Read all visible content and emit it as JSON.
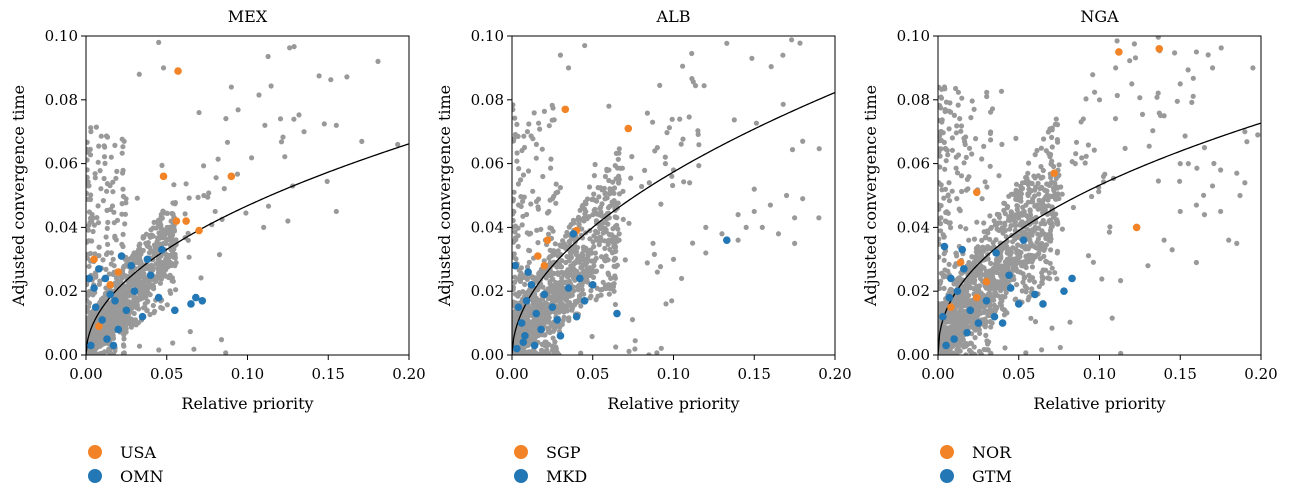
{
  "colors": {
    "background_points": "#999999",
    "highlight_a": "#F28427",
    "highlight_b": "#2277B4",
    "fit_line": "#000000"
  },
  "chart_data": [
    {
      "type": "scatter",
      "title": "MEX",
      "xlabel": "Relative priority",
      "ylabel": "Adjusted convergence time",
      "xlim": [
        0,
        0.2
      ],
      "ylim": [
        0,
        0.1
      ],
      "xticks": [
        "0.00",
        "0.05",
        "0.10",
        "0.15",
        "0.20"
      ],
      "yticks": [
        "0.00",
        "0.02",
        "0.04",
        "0.06",
        "0.08",
        "0.10"
      ],
      "fit_curve": {
        "form": "power",
        "a": 0.148,
        "b": 0.5
      },
      "cloud": {
        "n": 1400,
        "seed": 11,
        "spread": 1.0,
        "tail": 0.1
      },
      "extra_points": [
        [
          0.193,
          0.066
        ],
        [
          0.155,
          0.045
        ],
        [
          0.128,
          0.053
        ],
        [
          0.125,
          0.042
        ],
        [
          0.135,
          0.07
        ],
        [
          0.11,
          0.04
        ],
        [
          0.155,
          0.072
        ],
        [
          0.09,
          0.084
        ],
        [
          0.07,
          0.076
        ],
        [
          0.045,
          0.098
        ],
        [
          0.033,
          0.088
        ],
        [
          0.048,
          0.09
        ],
        [
          0.073,
          0.05
        ],
        [
          0.08,
          0.045
        ]
      ],
      "series": [
        {
          "name": "USA",
          "points": [
            [
              0.057,
              0.089
            ],
            [
              0.048,
              0.056
            ],
            [
              0.09,
              0.056
            ],
            [
              0.062,
              0.042
            ],
            [
              0.056,
              0.042
            ],
            [
              0.07,
              0.039
            ],
            [
              0.008,
              0.009
            ],
            [
              0.005,
              0.03
            ],
            [
              0.02,
              0.026
            ],
            [
              0.015,
              0.022
            ]
          ]
        },
        {
          "name": "OMN",
          "points": [
            [
              0.003,
              0.003
            ],
            [
              0.005,
              0.021
            ],
            [
              0.008,
              0.027
            ],
            [
              0.012,
              0.024
            ],
            [
              0.015,
              0.019
            ],
            [
              0.018,
              0.017
            ],
            [
              0.022,
              0.031
            ],
            [
              0.025,
              0.014
            ],
            [
              0.03,
              0.02
            ],
            [
              0.035,
              0.012
            ],
            [
              0.04,
              0.025
            ],
            [
              0.045,
              0.018
            ],
            [
              0.047,
              0.033
            ],
            [
              0.055,
              0.014
            ],
            [
              0.065,
              0.016
            ],
            [
              0.068,
              0.018
            ],
            [
              0.072,
              0.017
            ],
            [
              0.01,
              0.011
            ],
            [
              0.02,
              0.008
            ],
            [
              0.028,
              0.028
            ],
            [
              0.006,
              0.015
            ],
            [
              0.013,
              0.005
            ],
            [
              0.038,
              0.03
            ],
            [
              0.002,
              0.024
            ],
            [
              0.017,
              0.003
            ]
          ]
        }
      ],
      "legend": "bottom-left"
    },
    {
      "type": "scatter",
      "title": "ALB",
      "xlabel": "Relative priority",
      "ylabel": "Adjusted convergence time",
      "xlim": [
        0,
        0.2
      ],
      "ylim": [
        0,
        0.1
      ],
      "xticks": [
        "0.00",
        "0.05",
        "0.10",
        "0.15",
        "0.20"
      ],
      "yticks": [
        "0.00",
        "0.02",
        "0.04",
        "0.06",
        "0.08",
        "0.10"
      ],
      "fit_curve": {
        "form": "power",
        "a": 0.19,
        "b": 0.52
      },
      "cloud": {
        "n": 1500,
        "seed": 23,
        "spread": 1.2,
        "tail": 0.12
      },
      "extra_points": [
        [
          0.12,
          0.04
        ],
        [
          0.13,
          0.038
        ],
        [
          0.14,
          0.044
        ],
        [
          0.145,
          0.04
        ],
        [
          0.15,
          0.045
        ],
        [
          0.16,
          0.047
        ],
        [
          0.17,
          0.05
        ],
        [
          0.175,
          0.043
        ],
        [
          0.18,
          0.049
        ],
        [
          0.19,
          0.043
        ],
        [
          0.12,
          0.032
        ],
        [
          0.14,
          0.036
        ],
        [
          0.155,
          0.04
        ],
        [
          0.165,
          0.038
        ],
        [
          0.175,
          0.035
        ],
        [
          0.18,
          0.067
        ],
        [
          0.095,
          0.06
        ],
        [
          0.1,
          0.058
        ],
        [
          0.11,
          0.054
        ],
        [
          0.105,
          0.024
        ],
        [
          0.045,
          0.097
        ],
        [
          0.03,
          0.094
        ],
        [
          0.035,
          0.09
        ],
        [
          0.06,
          0.078
        ],
        [
          0.09,
          0.065
        ],
        [
          0.085,
          0.054
        ],
        [
          0.06,
          0.058
        ],
        [
          0.15,
          0.052
        ],
        [
          0.1,
          0.03
        ],
        [
          0.09,
          0.026
        ]
      ],
      "series": [
        {
          "name": "SGP",
          "points": [
            [
              0.033,
              0.077
            ],
            [
              0.072,
              0.071
            ],
            [
              0.022,
              0.036
            ],
            [
              0.04,
              0.039
            ],
            [
              0.016,
              0.031
            ],
            [
              0.02,
              0.028
            ]
          ]
        },
        {
          "name": "MKD",
          "points": [
            [
              0.133,
              0.036
            ],
            [
              0.065,
              0.013
            ],
            [
              0.038,
              0.038
            ],
            [
              0.003,
              0.002
            ],
            [
              0.006,
              0.01
            ],
            [
              0.009,
              0.017
            ],
            [
              0.012,
              0.022
            ],
            [
              0.015,
              0.013
            ],
            [
              0.018,
              0.008
            ],
            [
              0.02,
              0.019
            ],
            [
              0.025,
              0.015
            ],
            [
              0.03,
              0.006
            ],
            [
              0.035,
              0.021
            ],
            [
              0.04,
              0.012
            ],
            [
              0.042,
              0.024
            ],
            [
              0.002,
              0.028
            ],
            [
              0.004,
              0.015
            ],
            [
              0.007,
              0.004
            ],
            [
              0.01,
              0.026
            ],
            [
              0.028,
              0.011
            ],
            [
              0.045,
              0.017
            ],
            [
              0.008,
              0.006
            ],
            [
              0.014,
              0.003
            ],
            [
              0.05,
              0.022
            ]
          ]
        }
      ],
      "legend": "bottom-left"
    },
    {
      "type": "scatter",
      "title": "NGA",
      "xlabel": "Relative priority",
      "ylabel": "Adjusted convergence time",
      "xlim": [
        0,
        0.2
      ],
      "ylim": [
        0,
        0.1
      ],
      "xticks": [
        "0.00",
        "0.05",
        "0.10",
        "0.15",
        "0.20"
      ],
      "yticks": [
        "0.00",
        "0.02",
        "0.04",
        "0.06",
        "0.08",
        "0.10"
      ],
      "fit_curve": {
        "form": "power",
        "a": 0.15,
        "b": 0.45
      },
      "cloud": {
        "n": 1800,
        "seed": 37,
        "spread": 1.35,
        "tail": 0.14
      },
      "extra_points": [
        [
          0.195,
          0.09
        ],
        [
          0.19,
          0.07
        ],
        [
          0.198,
          0.069
        ],
        [
          0.185,
          0.057
        ],
        [
          0.187,
          0.05
        ],
        [
          0.19,
          0.054
        ],
        [
          0.175,
          0.058
        ],
        [
          0.17,
          0.09
        ],
        [
          0.16,
          0.095
        ],
        [
          0.15,
          0.085
        ],
        [
          0.14,
          0.075
        ],
        [
          0.155,
          0.06
        ],
        [
          0.16,
          0.047
        ],
        [
          0.165,
          0.044
        ],
        [
          0.17,
          0.053
        ],
        [
          0.18,
          0.036
        ],
        [
          0.185,
          0.035
        ],
        [
          0.16,
          0.029
        ],
        [
          0.13,
          0.028
        ],
        [
          0.12,
          0.085
        ],
        [
          0.11,
          0.09
        ],
        [
          0.1,
          0.08
        ],
        [
          0.09,
          0.074
        ],
        [
          0.085,
          0.06
        ],
        [
          0.14,
          0.036
        ],
        [
          0.145,
          0.033
        ],
        [
          0.15,
          0.045
        ],
        [
          0.175,
          0.045
        ],
        [
          0.165,
          0.065
        ],
        [
          0.15,
          0.06
        ]
      ],
      "series": [
        {
          "name": "NOR",
          "points": [
            [
              0.137,
              0.096
            ],
            [
              0.112,
              0.095
            ],
            [
              0.072,
              0.057
            ],
            [
              0.024,
              0.051
            ],
            [
              0.123,
              0.04
            ],
            [
              0.014,
              0.029
            ],
            [
              0.03,
              0.023
            ],
            [
              0.024,
              0.018
            ],
            [
              0.008,
              0.015
            ]
          ]
        },
        {
          "name": "GTM",
          "points": [
            [
              0.053,
              0.036
            ],
            [
              0.044,
              0.025
            ],
            [
              0.036,
              0.032
            ],
            [
              0.004,
              0.034
            ],
            [
              0.008,
              0.024
            ],
            [
              0.012,
              0.02
            ],
            [
              0.016,
              0.027
            ],
            [
              0.02,
              0.014
            ],
            [
              0.025,
              0.01
            ],
            [
              0.03,
              0.017
            ],
            [
              0.035,
              0.012
            ],
            [
              0.04,
              0.01
            ],
            [
              0.05,
              0.016
            ],
            [
              0.065,
              0.016
            ],
            [
              0.078,
              0.02
            ],
            [
              0.083,
              0.024
            ],
            [
              0.005,
              0.003
            ],
            [
              0.01,
              0.005
            ],
            [
              0.003,
              0.012
            ],
            [
              0.018,
              0.007
            ],
            [
              0.045,
              0.021
            ],
            [
              0.06,
              0.019
            ],
            [
              0.007,
              0.018
            ],
            [
              0.015,
              0.033
            ]
          ]
        }
      ],
      "legend": "bottom-left"
    }
  ]
}
